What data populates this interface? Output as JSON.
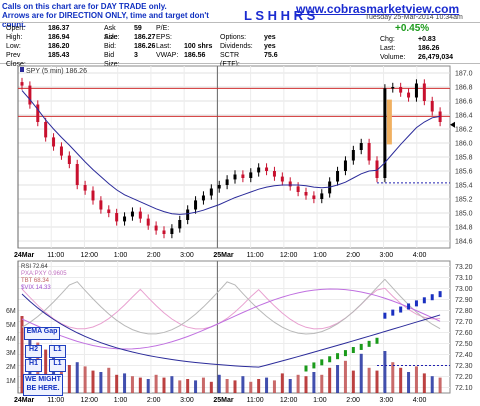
{
  "notes": [
    "Calls on this chart are for DAY TRADE only.",
    "Arrows are for DIRECTION ONLY, time and target don't count."
  ],
  "title": "L S H H R S",
  "url": "www.cobrasmarketview.com",
  "date_time": "Tuesday 25-Mar-2014 10:34am",
  "change_pct": "+0.45%",
  "quote": [
    [
      [
        "Open:",
        "186.37"
      ],
      [
        "Ask Size:",
        "59"
      ],
      [
        "P/E:",
        ""
      ],
      [
        "",
        ""
      ]
    ],
    [
      [
        "High:",
        "186.94"
      ],
      [
        "Ask:",
        "186.27"
      ],
      [
        "EPS:",
        ""
      ],
      [
        "Options:",
        "yes"
      ]
    ],
    [
      [
        "Low:",
        "186.20"
      ],
      [
        "Bid:",
        "186.26"
      ],
      [
        "Last:",
        "100 shrs"
      ],
      [
        "Dividends:",
        "yes"
      ]
    ],
    [
      [
        "Prev Close:",
        "185.43"
      ],
      [
        "Bid Size:",
        "3"
      ],
      [
        "VWAP:",
        "186.56"
      ],
      [
        "SCTR (ETF):",
        "75.6"
      ]
    ]
  ],
  "quote_right": [
    [
      "Chg:",
      "+0.83"
    ],
    [
      "Last:",
      "186.26"
    ],
    [
      "Volume:",
      "26,479,034"
    ]
  ],
  "legend_main": "SPY (5 min) 186.26",
  "ann_labels": {
    "ema": "EMA Gap",
    "h2": "H2",
    "l1": "L1",
    "h1": "H1",
    "l1b": "L1",
    "might": "WE MIGHT BE HERE."
  },
  "chart_data": [
    {
      "type": "candlestick",
      "legend": "SPY (5 min) 186.26",
      "ylim": [
        184.5,
        187.1
      ],
      "y_ticks": [
        184.6,
        184.8,
        185.0,
        185.2,
        185.4,
        185.6,
        185.8,
        186.0,
        186.2,
        186.4,
        186.6,
        186.8,
        187.0
      ],
      "x_ticks": [
        "24Mar",
        "11:00",
        "12:00",
        "1:00",
        "2:00",
        "3:00",
        "25Mar",
        "11:00",
        "12:00",
        "1:00",
        "2:00",
        "3:00",
        "4:00"
      ],
      "close_series": [
        186.82,
        186.55,
        186.3,
        186.08,
        185.95,
        185.82,
        185.7,
        185.4,
        185.32,
        185.18,
        185.05,
        185.0,
        184.88,
        184.95,
        185.02,
        184.92,
        184.82,
        184.75,
        184.7,
        184.78,
        184.9,
        185.05,
        185.18,
        185.25,
        185.35,
        185.4,
        185.48,
        185.55,
        185.5,
        185.58,
        185.65,
        185.6,
        185.52,
        185.45,
        185.38,
        185.3,
        185.25,
        185.2,
        185.28,
        185.45,
        185.6,
        185.75,
        185.9,
        186.0,
        185.75,
        185.5,
        186.78,
        186.8,
        186.72,
        186.65,
        186.85,
        186.6,
        186.45,
        186.3
      ],
      "ema_series": [
        186.75,
        186.62,
        186.48,
        186.33,
        186.2,
        186.08,
        185.97,
        185.85,
        185.73,
        185.62,
        185.52,
        185.42,
        185.33,
        185.26,
        185.21,
        185.16,
        185.11,
        185.06,
        185.02,
        184.99,
        184.98,
        184.99,
        185.01,
        185.04,
        185.08,
        185.12,
        185.17,
        185.22,
        185.26,
        185.3,
        185.34,
        185.37,
        185.39,
        185.4,
        185.4,
        185.4,
        185.39,
        185.37,
        185.36,
        185.37,
        185.4,
        185.44,
        185.5,
        185.56,
        185.6,
        185.61,
        185.72,
        185.85,
        185.98,
        186.1,
        186.22,
        186.3,
        186.36,
        186.38
      ],
      "resistance_line": 186.78,
      "support_line": 186.38,
      "prev_close_line": 185.43
    },
    {
      "type": "histogram_indicators",
      "legend": [
        "RSI 72.64",
        "PXA:PXY 0.9605",
        "TBT 68.34",
        "$VIX 14.33"
      ],
      "y_ticks": [
        72.1,
        72.2,
        72.3,
        72.4,
        72.5,
        72.6,
        72.7,
        72.8,
        72.9,
        73.0,
        73.1,
        73.2
      ],
      "vol_ticks": [
        "1M",
        "2M",
        "3M",
        "4M",
        "5M",
        "6M"
      ],
      "x_ticks": [
        "24Mar",
        "11:00",
        "12:00",
        "1:00",
        "2:00",
        "3:00",
        "25Mar",
        "11:00",
        "12:00",
        "1:00",
        "2:00",
        "3:00",
        "4:00"
      ]
    }
  ],
  "colors": {
    "up": "#000000",
    "down": "#c8102e",
    "ema": "#2b2b9a",
    "line_red": "#d03030",
    "dashed": "#2020b0",
    "highlight": "#f0b060",
    "green": "#1a9a1a"
  }
}
